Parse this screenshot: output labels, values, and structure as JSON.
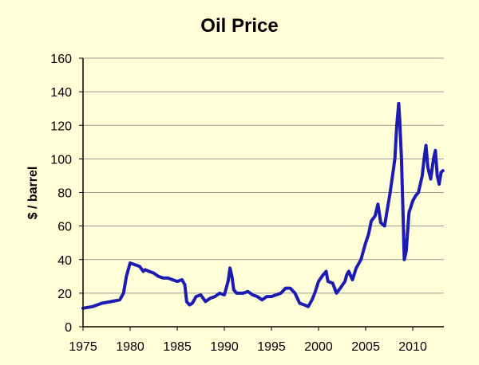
{
  "chart_data": {
    "type": "line",
    "title": "Oil Price",
    "xlabel": "",
    "ylabel": "$ / barrel",
    "xlim": [
      1975,
      2013.3
    ],
    "ylim": [
      0,
      160
    ],
    "x_ticks": [
      "1975",
      "1980",
      "1985",
      "1990",
      "1995",
      "2000",
      "2005",
      "2010"
    ],
    "y_ticks": [
      "0",
      "20",
      "40",
      "60",
      "80",
      "100",
      "120",
      "140",
      "160"
    ],
    "grid": "horizontal",
    "legend": "none",
    "colors": {
      "line": "#1c1cb4",
      "grid": "#9a9a9a",
      "background": "#ffffd8",
      "axis": "#000000"
    },
    "series": [
      {
        "x": [
          1975,
          1976,
          1977,
          1978,
          1978.9,
          1979.3,
          1979.6,
          1980,
          1980.5,
          1981,
          1981.4,
          1981.6,
          1982,
          1982.5,
          1983,
          1983.5,
          1984,
          1984.5,
          1985,
          1985.5,
          1985.8,
          1986,
          1986.3,
          1986.6,
          1987,
          1987.5,
          1988,
          1988.5,
          1989,
          1989.5,
          1990,
          1990.4,
          1990.6,
          1990.8,
          1991,
          1991.3,
          1991.6,
          1992,
          1992.5,
          1993,
          1993.5,
          1994,
          1994.5,
          1995,
          1995.5,
          1996,
          1996.5,
          1997,
          1997.5,
          1998,
          1998.5,
          1998.9,
          1999.3,
          1999.6,
          2000,
          2000.5,
          2000.8,
          2001,
          2001.5,
          2001.9,
          2002.3,
          2002.8,
          2003,
          2003.2,
          2003.6,
          2004,
          2004.5,
          2005,
          2005.3,
          2005.6,
          2006,
          2006.3,
          2006.6,
          2007,
          2007.3,
          2007.6,
          2007.9,
          2008.1,
          2008.3,
          2008.5,
          2008.6,
          2008.8,
          2009,
          2009.1,
          2009.3,
          2009.6,
          2010,
          2010.3,
          2010.6,
          2011,
          2011.2,
          2011.4,
          2011.6,
          2011.9,
          2012.2,
          2012.4,
          2012.6,
          2012.8,
          2013,
          2013.2
        ],
        "y": [
          11,
          12,
          14,
          15,
          16,
          20,
          30,
          38,
          37,
          36,
          33,
          34,
          33,
          32,
          30,
          29,
          29,
          28,
          27,
          28,
          25,
          15,
          13,
          14,
          18,
          19,
          15,
          17,
          18,
          20,
          19,
          27,
          35,
          30,
          22,
          20,
          20,
          20,
          21,
          19,
          18,
          16,
          18,
          18,
          19,
          20,
          23,
          23,
          20,
          14,
          13,
          12,
          16,
          20,
          27,
          31,
          33,
          27,
          26,
          20,
          23,
          27,
          31,
          33,
          28,
          35,
          40,
          50,
          55,
          63,
          66,
          73,
          62,
          60,
          70,
          80,
          92,
          100,
          120,
          133,
          125,
          100,
          60,
          40,
          45,
          68,
          75,
          78,
          80,
          90,
          100,
          108,
          95,
          88,
          100,
          105,
          90,
          85,
          92,
          93
        ]
      }
    ]
  }
}
